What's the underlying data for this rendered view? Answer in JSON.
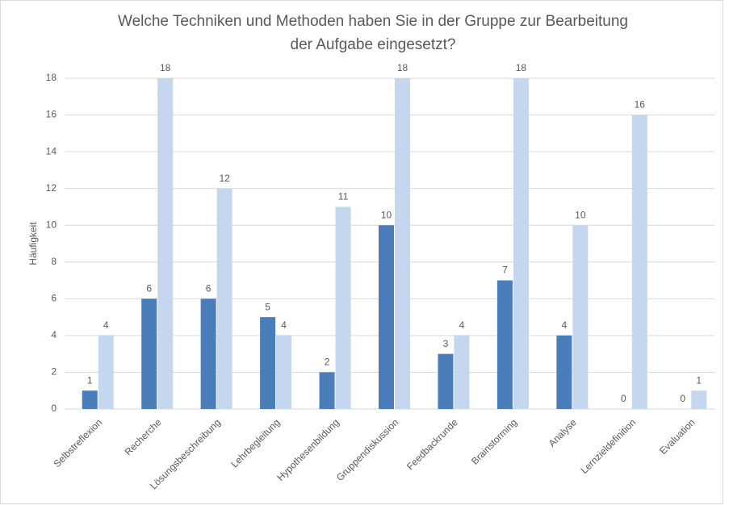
{
  "chart_data": {
    "type": "bar",
    "title": [
      "Welche Techniken und Methoden haben Sie in der Gruppe zur Bearbeitung",
      "der Aufgabe eingesetzt?"
    ],
    "y_label": "Häufigkeit",
    "categories": [
      "Selbstreflexion",
      "Recherche",
      "Lösungsbeschreibung",
      "Lehrbegleitung",
      "Hypothesenbildung",
      "Gruppendiskussion",
      "Feedbackrunde",
      "Brainstorming",
      "Analyse",
      "Lernzieldefinition",
      "Evaluation"
    ],
    "series": [
      {
        "color": "#4a7ebb",
        "values": [
          1,
          6,
          6,
          5,
          2,
          10,
          3,
          7,
          4,
          0,
          0
        ]
      },
      {
        "color": "#c5d7ee",
        "values": [
          4,
          18,
          12,
          4,
          11,
          18,
          4,
          18,
          10,
          16,
          1
        ]
      }
    ],
    "ylim": [
      0,
      18
    ],
    "yticks": [
      0,
      2,
      4,
      6,
      8,
      10,
      12,
      14,
      16,
      18
    ],
    "grid": true
  }
}
